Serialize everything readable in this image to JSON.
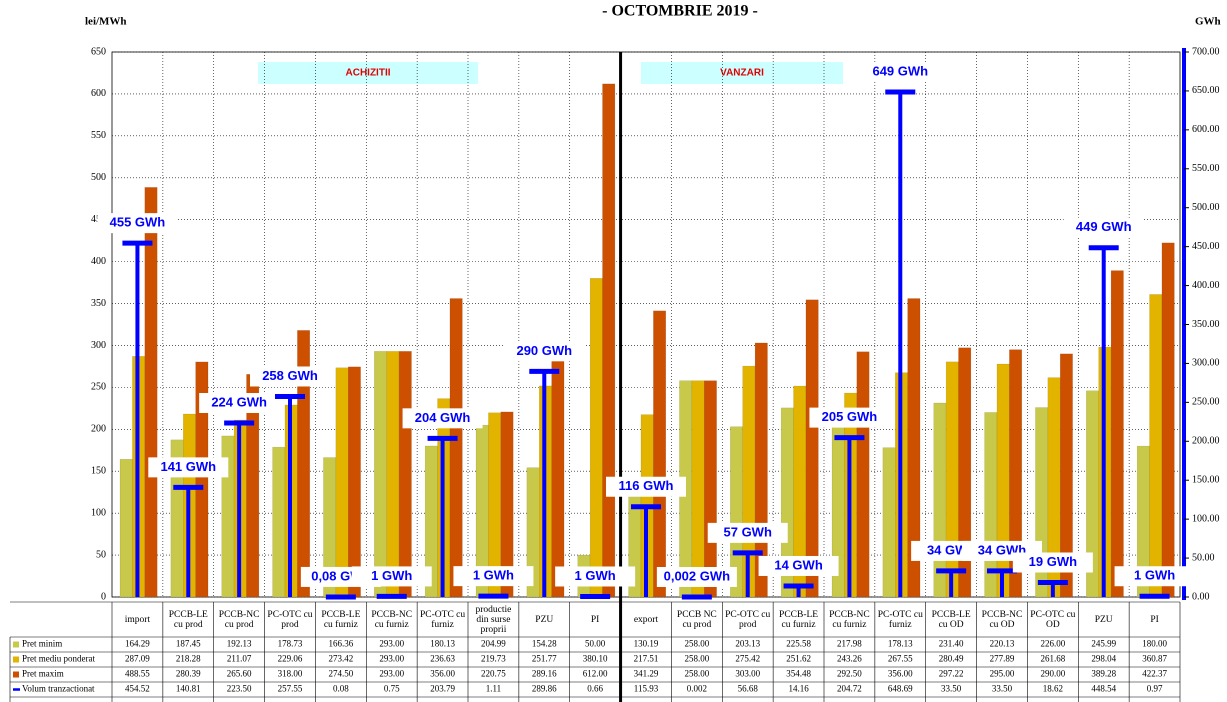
{
  "chart_data": {
    "type": "bar",
    "title": "- OCTOMBRIE 2019 -",
    "y_label": "lei/MWh",
    "y2_label": "GWh",
    "sections": [
      "ACHIZITII",
      "VANZARI"
    ],
    "categories": [
      "import",
      "PCCB-LE cu prod",
      "PCCB-NC cu prod",
      "PC-OTC cu prod",
      "PCCB-LE cu furniz",
      "PCCB-NC cu furniz",
      "PC-OTC cu furniz",
      "productie din surse proprii",
      "PZU",
      "PI",
      "export",
      "PCCB NC cu prod",
      "PC-OTC cu prod",
      "PCCB-LE cu furniz",
      "PCCB-NC cu furniz",
      "PC-OTC cu furniz",
      "PCCB-LE cu OD",
      "PCCB-NC cu OD",
      "PC-OTC cu OD",
      "PZU",
      "PI"
    ],
    "series": [
      {
        "name": "Pret minim",
        "color": "#c8c84a",
        "values": [
          164.29,
          187.45,
          192.13,
          178.73,
          166.36,
          293.0,
          180.13,
          204.99,
          154.28,
          50.0,
          130.19,
          258.0,
          203.13,
          225.58,
          217.98,
          178.13,
          231.4,
          220.13,
          226.0,
          245.99,
          180.0
        ],
        "value_labels": [
          "164.29",
          "187.45",
          "192.13",
          "178.73",
          "166.36",
          "293.00",
          "180.13",
          "204.99",
          "154.28",
          "50.00",
          "130.19",
          "258.00",
          "203.13",
          "225.58",
          "217.98",
          "178.13",
          "231.40",
          "220.13",
          "226.00",
          "245.99",
          "180.00"
        ]
      },
      {
        "name": "Pret mediu ponderat",
        "color": "#e2b400",
        "values": [
          287.09,
          218.28,
          211.07,
          229.06,
          273.42,
          293.0,
          236.63,
          219.73,
          251.77,
          380.1,
          217.51,
          258.0,
          275.42,
          251.62,
          243.26,
          267.55,
          280.49,
          277.89,
          261.68,
          298.04,
          360.87
        ],
        "value_labels": [
          "287.09",
          "218.28",
          "211.07",
          "229.06",
          "273.42",
          "293.00",
          "236.63",
          "219.73",
          "251.77",
          "380.10",
          "217.51",
          "258.00",
          "275.42",
          "251.62",
          "243.26",
          "267.55",
          "280.49",
          "277.89",
          "261.68",
          "298.04",
          "360.87"
        ]
      },
      {
        "name": "Pret maxim",
        "color": "#cc5000",
        "values": [
          488.55,
          280.39,
          265.6,
          318.0,
          274.5,
          293.0,
          356.0,
          220.75,
          289.16,
          612.0,
          341.29,
          258.0,
          303.0,
          354.48,
          292.5,
          356.0,
          297.22,
          295.0,
          290.0,
          389.28,
          422.37
        ],
        "value_labels": [
          "488.55",
          "280.39",
          "265.60",
          "318.00",
          "274.50",
          "293.00",
          "356.00",
          "220.75",
          "289.16",
          "612.00",
          "341.29",
          "258.00",
          "303.00",
          "354.48",
          "292.50",
          "356.00",
          "297.22",
          "295.00",
          "290.00",
          "389.28",
          "422.37"
        ]
      },
      {
        "name": "Volum tranzactionat",
        "color": "#0000ff",
        "axis": "y2",
        "values": [
          454.52,
          140.81,
          223.5,
          257.55,
          0.08,
          0.75,
          203.79,
          1.11,
          289.86,
          0.66,
          115.93,
          0.002,
          56.68,
          14.16,
          204.72,
          648.69,
          33.5,
          33.5,
          18.62,
          448.54,
          0.97
        ],
        "value_labels": [
          "454.52",
          "140.81",
          "223.50",
          "257.55",
          "0.08",
          "0.75",
          "203.79",
          "1.11",
          "289.86",
          "0.66",
          "115.93",
          "0.002",
          "56.68",
          "14.16",
          "204.72",
          "648.69",
          "33.50",
          "33.50",
          "18.62",
          "448.54",
          "0.97"
        ],
        "data_labels": [
          "455 GWh",
          "141 GWh",
          "224 GWh",
          "258 GWh",
          "0,08 GWh",
          "1 GWh",
          "204 GWh",
          "1 GWh",
          "290 GWh",
          "1 GWh",
          "116 GWh",
          "0,002 GWh",
          "57 GWh",
          "14 GWh",
          "205 GWh",
          "649 GWh",
          "34 GWh",
          "34 GWh",
          "19 GWh",
          "449 GWh",
          "1 GWh"
        ]
      }
    ],
    "ylim": [
      0,
      650
    ],
    "yticks": [
      0,
      50,
      100,
      150,
      200,
      250,
      300,
      350,
      400,
      450,
      500,
      550,
      600,
      650
    ],
    "y2lim": [
      0,
      700
    ],
    "y2ticks": [
      {
        "value": 0,
        "label": "0.00"
      },
      {
        "value": 50,
        "label": "50.00"
      },
      {
        "value": 100,
        "label": "100.00"
      },
      {
        "value": 150,
        "label": "150.00"
      },
      {
        "value": 200,
        "label": "200.00"
      },
      {
        "value": 250,
        "label": "250.00"
      },
      {
        "value": 300,
        "label": "300.00"
      },
      {
        "value": 350,
        "label": "350.00"
      },
      {
        "value": 400,
        "label": "400.00"
      },
      {
        "value": 450,
        "label": "450.00"
      },
      {
        "value": 500,
        "label": "500.00"
      },
      {
        "value": 550,
        "label": "550.00"
      },
      {
        "value": 600,
        "label": "600.00"
      },
      {
        "value": 650,
        "label": "650.00"
      },
      {
        "value": 700,
        "label": "700.00"
      }
    ],
    "grid": true
  }
}
